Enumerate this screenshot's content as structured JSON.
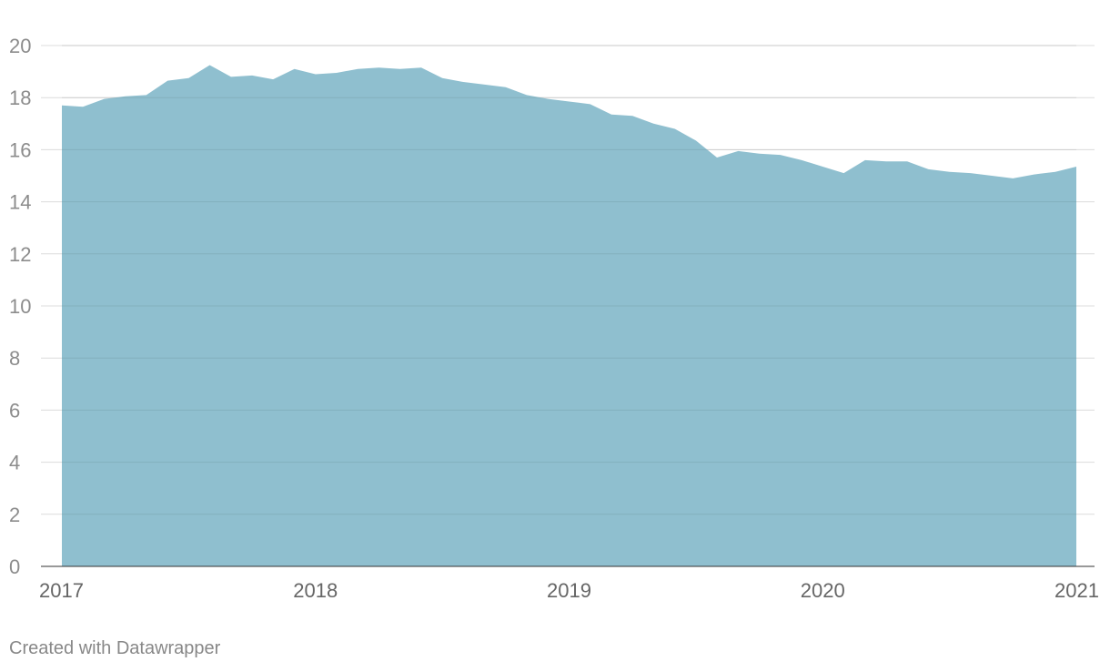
{
  "chart_data": {
    "type": "area",
    "title": "",
    "xlabel": "",
    "ylabel": "",
    "xlim": [
      2017.0,
      2021.0
    ],
    "ylim": [
      0,
      20
    ],
    "y_ticks": [
      0,
      2,
      4,
      6,
      8,
      10,
      12,
      14,
      16,
      18,
      20
    ],
    "x_ticks": [
      2017,
      2018,
      2019,
      2020,
      2021
    ],
    "grid": true,
    "legend": "none",
    "fill_color": "#8fbfcf",
    "series": [
      {
        "x": [
          2017.0,
          2017.083,
          2017.167,
          2017.25,
          2017.333,
          2017.417,
          2017.5,
          2017.583,
          2017.667,
          2017.75,
          2017.833,
          2017.917,
          2018.0,
          2018.083,
          2018.167,
          2018.25,
          2018.333,
          2018.417,
          2018.5,
          2018.583,
          2018.667,
          2018.75,
          2018.833,
          2018.917,
          2019.0,
          2019.083,
          2019.167,
          2019.25,
          2019.333,
          2019.417,
          2019.5,
          2019.583,
          2019.667,
          2019.75,
          2019.833,
          2019.917,
          2020.0,
          2020.083,
          2020.167,
          2020.25,
          2020.333,
          2020.417,
          2020.5,
          2020.583,
          2020.667,
          2020.75,
          2020.833,
          2020.917,
          2021.0
        ],
        "values": [
          17.7,
          17.65,
          17.95,
          18.05,
          18.1,
          18.65,
          18.75,
          19.25,
          18.8,
          18.85,
          18.7,
          19.1,
          18.9,
          18.95,
          19.1,
          19.15,
          19.1,
          19.15,
          18.75,
          18.6,
          18.5,
          18.4,
          18.1,
          17.95,
          17.85,
          17.75,
          17.35,
          17.3,
          17.0,
          16.8,
          16.35,
          15.7,
          15.95,
          15.85,
          15.8,
          15.6,
          15.35,
          15.1,
          15.6,
          15.55,
          15.55,
          15.25,
          15.15,
          15.1,
          15.0,
          14.9,
          15.05,
          15.15,
          15.35
        ]
      }
    ]
  },
  "footer": {
    "credit": "Created with Datawrapper"
  }
}
